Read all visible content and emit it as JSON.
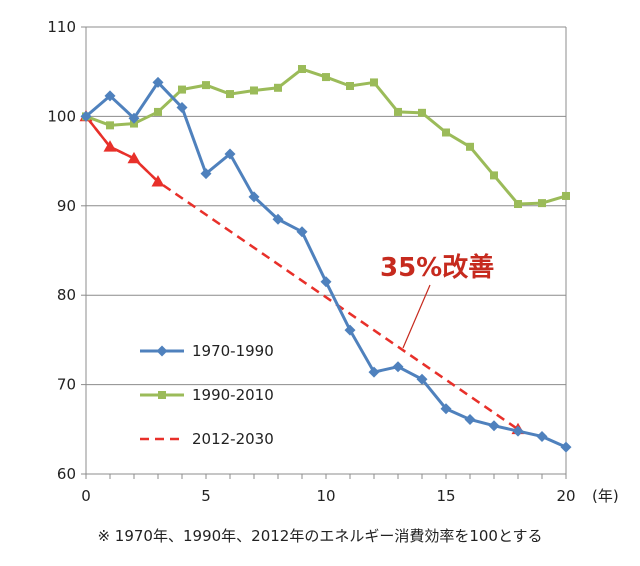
{
  "chart_data": {
    "type": "line",
    "x_unit": "(年)",
    "xlim": [
      0,
      20
    ],
    "ylim": [
      60,
      110
    ],
    "x_ticks": [
      0,
      5,
      10,
      15,
      20
    ],
    "y_ticks": [
      60,
      70,
      80,
      90,
      100,
      110
    ],
    "grid": "horizontal",
    "legend_position": "left-center",
    "series": [
      {
        "name": "1970-1990",
        "color": "#4f81bd",
        "marker": "diamond",
        "style": "solid",
        "x": [
          0,
          1,
          2,
          3,
          4,
          5,
          6,
          7,
          8,
          9,
          10,
          11,
          12,
          13,
          14,
          15,
          16,
          17,
          18,
          19,
          20
        ],
        "y": [
          100,
          102.3,
          99.8,
          103.8,
          101,
          93.6,
          95.8,
          91,
          88.5,
          87.1,
          81.5,
          76.1,
          71.4,
          72,
          70.6,
          67.3,
          66.1,
          65.4,
          64.8,
          64.2,
          63
        ]
      },
      {
        "name": "1990-2010",
        "color": "#9bbb59",
        "marker": "square",
        "style": "solid",
        "x": [
          0,
          1,
          2,
          3,
          4,
          5,
          6,
          7,
          8,
          9,
          10,
          11,
          12,
          13,
          14,
          15,
          16,
          17,
          18,
          19,
          20
        ],
        "y": [
          100,
          99,
          99.2,
          100.5,
          103,
          103.5,
          102.5,
          102.9,
          103.2,
          105.3,
          104.4,
          103.4,
          103.8,
          100.5,
          100.4,
          98.2,
          96.6,
          93.4,
          90.2,
          90.3,
          91.1
        ]
      },
      {
        "name": "2012-2030",
        "color": "#e8302a",
        "marker": "triangle",
        "style": "dashed",
        "x": [
          0,
          1,
          2,
          3,
          18
        ],
        "y": [
          100,
          96.6,
          95.3,
          92.7,
          65
        ]
      }
    ],
    "annotation": {
      "text": "35%改善",
      "color": "#c62a1e"
    },
    "footnote": "※ 1970年、1990年、2012年のエネルギー消費効率を100とする"
  }
}
